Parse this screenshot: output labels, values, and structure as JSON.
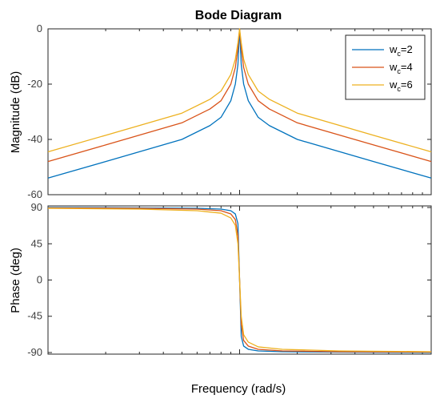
{
  "title": "Bode Diagram",
  "xlabel": "Frequency  (rad/s)",
  "chart_data": [
    {
      "type": "line",
      "panel": "magnitude",
      "ylabel": "Magnitude (dB)",
      "x_scale": "log",
      "xlim": [
        0.1,
        10
      ],
      "ylim": [
        -60,
        0
      ],
      "yticks": [
        0,
        -20,
        -40,
        -60
      ],
      "grid": false,
      "legend_position": "top-right",
      "series": [
        {
          "name": "w_c=2",
          "legend_main": "w",
          "legend_sub": "c",
          "legend_rest": "=2",
          "color": "#0072BD",
          "x": [
            0.1,
            0.2,
            0.5,
            0.7,
            0.8,
            0.9,
            0.95,
            0.98,
            1.0,
            1.02,
            1.05,
            1.11,
            1.25,
            1.43,
            2,
            5,
            10
          ],
          "y": [
            -54,
            -48,
            -40,
            -35,
            -32,
            -26,
            -20,
            -13,
            0,
            -13,
            -20,
            -26,
            -32,
            -35,
            -40,
            -48,
            -54
          ]
        },
        {
          "name": "w_c=4",
          "legend_main": "w",
          "legend_sub": "c",
          "legend_rest": "=4",
          "color": "#D95319",
          "x": [
            0.1,
            0.2,
            0.5,
            0.7,
            0.8,
            0.9,
            0.95,
            0.98,
            1.0,
            1.02,
            1.05,
            1.11,
            1.25,
            1.43,
            2,
            5,
            10
          ],
          "y": [
            -48,
            -42,
            -34,
            -29,
            -26,
            -20,
            -14,
            -7,
            0,
            -7,
            -14,
            -20,
            -26,
            -29,
            -34,
            -42,
            -48
          ]
        },
        {
          "name": "w_c=6",
          "legend_main": "w",
          "legend_sub": "c",
          "legend_rest": "=6",
          "color": "#EDB120",
          "x": [
            0.1,
            0.2,
            0.5,
            0.7,
            0.8,
            0.9,
            0.95,
            0.98,
            1.0,
            1.02,
            1.05,
            1.11,
            1.25,
            1.43,
            2,
            5,
            10
          ],
          "y": [
            -44.5,
            -38.5,
            -30.5,
            -25.5,
            -22.5,
            -16.5,
            -11,
            -5,
            0,
            -5,
            -11,
            -16.5,
            -22.5,
            -25.5,
            -30.5,
            -38.5,
            -44.5
          ]
        }
      ]
    },
    {
      "type": "line",
      "panel": "phase",
      "ylabel": "Phase (deg)",
      "x_scale": "log",
      "xlim": [
        0.1,
        10
      ],
      "ylim": [
        -92,
        92
      ],
      "yticks": [
        90,
        45,
        0,
        -45,
        -90
      ],
      "grid": false,
      "series": [
        {
          "name": "w_c=2",
          "color": "#0072BD",
          "x": [
            0.1,
            0.3,
            0.6,
            0.8,
            0.9,
            0.95,
            0.98,
            1.0,
            1.02,
            1.05,
            1.11,
            1.25,
            1.67,
            3.3,
            10
          ],
          "y": [
            90,
            89.5,
            89,
            88,
            86,
            82,
            70,
            0,
            -70,
            -82,
            -86,
            -88,
            -89,
            -89.5,
            -90
          ]
        },
        {
          "name": "w_c=4",
          "color": "#D95319",
          "x": [
            0.1,
            0.3,
            0.6,
            0.8,
            0.9,
            0.95,
            0.98,
            1.0,
            1.02,
            1.05,
            1.11,
            1.25,
            1.67,
            3.3,
            10
          ],
          "y": [
            89.5,
            89,
            88,
            86,
            82,
            75,
            55,
            0,
            -55,
            -75,
            -82,
            -86,
            -88,
            -89,
            -89.5
          ]
        },
        {
          "name": "w_c=6",
          "color": "#EDB120",
          "x": [
            0.1,
            0.3,
            0.6,
            0.8,
            0.9,
            0.95,
            0.98,
            1.0,
            1.02,
            1.05,
            1.11,
            1.25,
            1.67,
            3.3,
            10
          ],
          "y": [
            89,
            88,
            86,
            83,
            77,
            68,
            45,
            0,
            -45,
            -68,
            -77,
            -83,
            -86,
            -88,
            -89
          ]
        }
      ]
    }
  ]
}
